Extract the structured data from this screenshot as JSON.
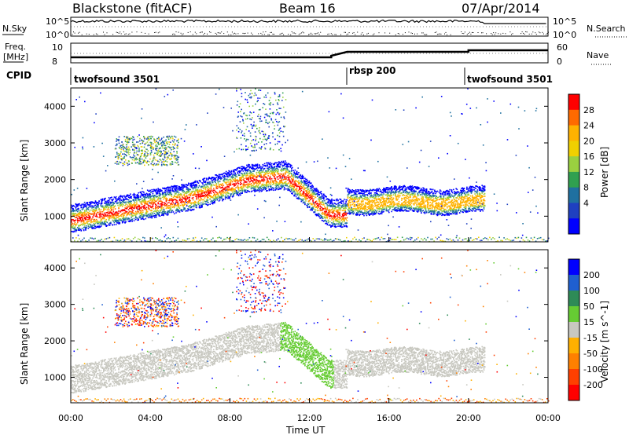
{
  "header": {
    "title": "Blackstone (fitACF)",
    "beam": "Beam 16",
    "date": "07/Apr/2014"
  },
  "panels": {
    "nsky_label": "N.Sky",
    "nsearch_label": "N.Search",
    "freq_label_1": "Freq.",
    "freq_label_2": "[MHz]",
    "nave_label": "Nave",
    "cpid_label": "CPID",
    "nsky_ticks": [
      "10^5",
      "10^0"
    ],
    "nsearch_ticks": [
      "10^5",
      "10^0"
    ],
    "freq_ticks": [
      "10",
      "8"
    ],
    "nave_ticks": [
      "60",
      "0"
    ]
  },
  "cpid_segments": [
    {
      "label": "twofsound 3501",
      "start": 0.0
    },
    {
      "label": "rbsp 200",
      "start": 13.9
    },
    {
      "label": "twofsound 3501",
      "start": 20.0
    }
  ],
  "chart_data": [
    {
      "type": "heatmap",
      "title": "",
      "xlabel": "",
      "ylabel": "Slant Range [km]",
      "xlim": [
        0,
        24
      ],
      "ylim": [
        300,
        4500
      ],
      "yticks": [
        "1000",
        "2000",
        "3000",
        "4000"
      ],
      "colorbar_label": "Power [dB]",
      "colorbar_ticks": [
        "28",
        "24",
        "20",
        "16",
        "12",
        "8",
        "4"
      ],
      "colorbar_colors": [
        "#ff0000",
        "#ff6a00",
        "#ffb200",
        "#f0d000",
        "#9ad040",
        "#30a050",
        "#1f70a0",
        "#1f40c0",
        "#0000ff"
      ]
    },
    {
      "type": "heatmap",
      "title": "",
      "xlabel": "Time UT",
      "ylabel": "Slant Range [km]",
      "xlim": [
        0,
        24
      ],
      "ylim": [
        300,
        4500
      ],
      "xticks": [
        "00:00",
        "04:00",
        "08:00",
        "12:00",
        "16:00",
        "20:00",
        "00:00"
      ],
      "yticks": [
        "1000",
        "2000",
        "3000",
        "4000"
      ],
      "colorbar_label": "Velocity [m s^-1]",
      "colorbar_ticks": [
        "200",
        "100",
        "50",
        "15",
        "-15",
        "-50",
        "-100",
        "-200"
      ],
      "colorbar_colors": [
        "#0000ff",
        "#1f5fd0",
        "#2e8b57",
        "#66cc33",
        "#c8c8c0",
        "#ffb000",
        "#ff8000",
        "#ff4000",
        "#ff0000"
      ]
    }
  ]
}
